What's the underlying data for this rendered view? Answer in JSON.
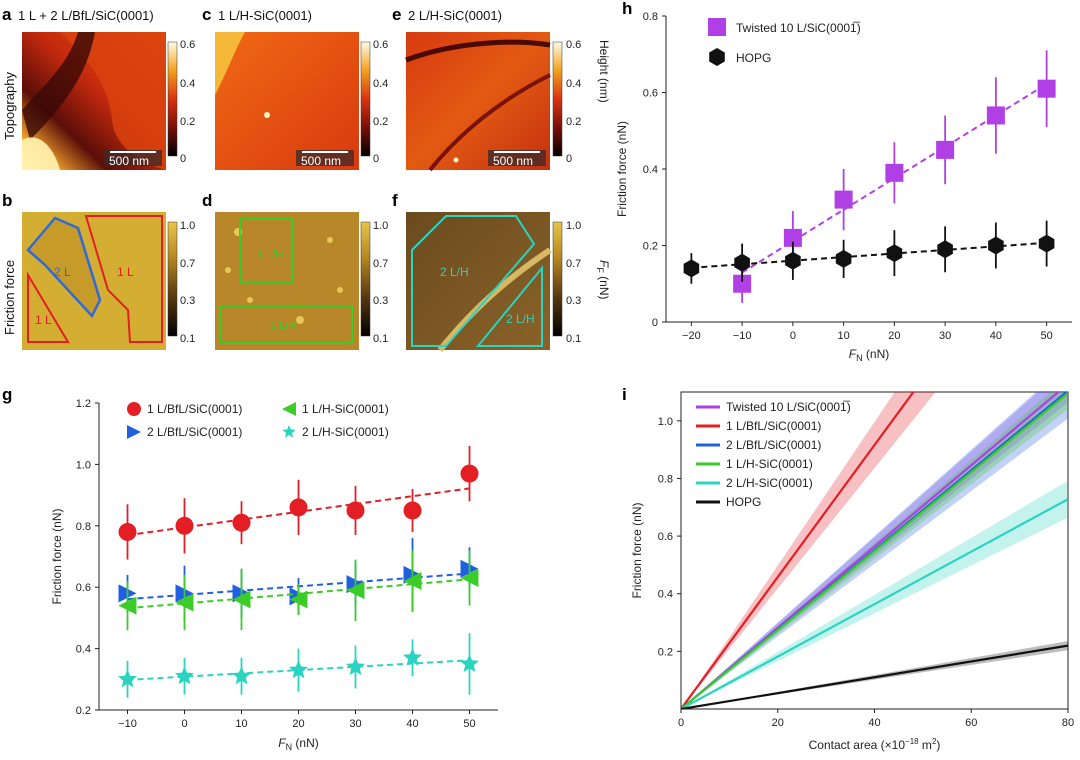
{
  "colors": {
    "red": "#e31e24",
    "blue": "#1f5fe0",
    "green": "#3ccc2a",
    "cyan": "#2bd3c1",
    "purple": "#b13fe6",
    "black": "#111111"
  },
  "panels": {
    "a": {
      "letter": "a",
      "title": "1 L + 2 L/BfL/SiC(0001)",
      "row_label": "Topography",
      "scale": "500 nm"
    },
    "c": {
      "letter": "c",
      "title": "1 L/H-SiC(0001)",
      "scale": "500 nm"
    },
    "e": {
      "letter": "e",
      "title": "2 L/H-SiC(0001)",
      "scale": "500 nm"
    },
    "b": {
      "letter": "b",
      "row_label": "Friction force",
      "region1": "2 L",
      "region2": "1 L",
      "region3": "1 L"
    },
    "d": {
      "letter": "d",
      "region1": "1 L/H",
      "region2": "1 L/H"
    },
    "f": {
      "letter": "f",
      "region1": "2 L/H",
      "region2": "2 L/H"
    },
    "colorbar_height": {
      "ticks": [
        "0.6",
        "0.4",
        "0.2",
        "0"
      ],
      "label": "Height (nm)"
    },
    "colorbar_friction": {
      "ticks": [
        "1.0",
        "0.7",
        "0.3",
        "0.1"
      ],
      "label": "F",
      "label_sub": "F",
      "label_unit": " (nN)"
    }
  },
  "chart_data": [
    {
      "id": "h",
      "letter": "h",
      "type": "scatter",
      "xlabel": "F",
      "xlabel_sub": "N",
      "xlabel_unit": " (nN)",
      "ylabel": "Friction force (nN)",
      "xlim": [
        -25,
        55
      ],
      "ylim": [
        0,
        0.8
      ],
      "xticks": [
        "-20",
        "-10",
        "0",
        "10",
        "20",
        "30",
        "40",
        "50"
      ],
      "yticks": [
        "0",
        "0.2",
        "0.4",
        "0.6",
        "0.8"
      ],
      "series": [
        {
          "name": "Twisted 10 L/SiC(0001̅)",
          "marker": "square",
          "color": "#b13fe6",
          "x": [
            -10,
            0,
            10,
            20,
            30,
            40,
            50
          ],
          "y": [
            0.1,
            0.22,
            0.32,
            0.39,
            0.45,
            0.54,
            0.61
          ],
          "err": [
            0.05,
            0.07,
            0.08,
            0.08,
            0.09,
            0.1,
            0.1
          ]
        },
        {
          "name": "HOPG",
          "marker": "hexagon",
          "color": "#111111",
          "x": [
            -20,
            -10,
            0,
            10,
            20,
            30,
            40,
            50
          ],
          "y": [
            0.14,
            0.155,
            0.16,
            0.165,
            0.18,
            0.19,
            0.2,
            0.205
          ],
          "err": [
            0.04,
            0.05,
            0.05,
            0.05,
            0.06,
            0.06,
            0.06,
            0.06
          ]
        }
      ]
    },
    {
      "id": "g",
      "letter": "g",
      "type": "scatter",
      "xlabel": "F",
      "xlabel_sub": "N",
      "xlabel_unit": " (nN)",
      "ylabel": "Friction force (nN)",
      "xlim": [
        -15,
        55
      ],
      "ylim": [
        0.2,
        1.2
      ],
      "xticks": [
        "-10",
        "0",
        "10",
        "20",
        "30",
        "40",
        "50"
      ],
      "yticks": [
        "0.2",
        "0.4",
        "0.6",
        "0.8",
        "1.0",
        "1.2"
      ],
      "series": [
        {
          "name": "1 L/BfL/SiC(0001)",
          "marker": "circle",
          "color": "#e31e24",
          "x": [
            -10,
            0,
            10,
            20,
            30,
            40,
            50
          ],
          "y": [
            0.78,
            0.8,
            0.81,
            0.86,
            0.85,
            0.85,
            0.97
          ],
          "err": [
            0.09,
            0.09,
            0.07,
            0.09,
            0.08,
            0.07,
            0.09
          ]
        },
        {
          "name": "2 L/BfL/SiC(0001)",
          "marker": "tri-right",
          "color": "#1f5fe0",
          "x": [
            -10,
            0,
            10,
            20,
            30,
            40,
            50
          ],
          "y": [
            0.58,
            0.58,
            0.58,
            0.57,
            0.61,
            0.64,
            0.66
          ],
          "err": [
            0.06,
            0.09,
            0.08,
            0.06,
            0.07,
            0.12,
            0.07
          ]
        },
        {
          "name": "1 L/H-SiC(0001)",
          "marker": "tri-left",
          "color": "#3ccc2a",
          "x": [
            -10,
            0,
            10,
            20,
            30,
            40,
            50
          ],
          "y": [
            0.54,
            0.55,
            0.56,
            0.56,
            0.59,
            0.62,
            0.63
          ],
          "err": [
            0.08,
            0.09,
            0.1,
            0.05,
            0.1,
            0.1,
            0.09
          ]
        },
        {
          "name": "2 L/H-SiC(0001)",
          "marker": "star",
          "color": "#2bd3c1",
          "x": [
            -10,
            0,
            10,
            20,
            30,
            40,
            50
          ],
          "y": [
            0.3,
            0.31,
            0.31,
            0.33,
            0.34,
            0.37,
            0.35
          ],
          "err": [
            0.06,
            0.06,
            0.06,
            0.07,
            0.07,
            0.06,
            0.1
          ]
        }
      ]
    },
    {
      "id": "i",
      "letter": "i",
      "type": "line",
      "xlabel": "Contact area (×10",
      "xlabel_sup": "−18",
      "xlabel_unit": " m",
      "xlabel_sup2": "2",
      "xlabel_close": ")",
      "ylabel": "Friction force (nN)",
      "xlim": [
        0,
        80
      ],
      "ylim": [
        0,
        1.1
      ],
      "xticks": [
        "0",
        "20",
        "40",
        "60",
        "80"
      ],
      "yticks": [
        "0.2",
        "0.4",
        "0.6",
        "0.8",
        "1.0"
      ],
      "series": [
        {
          "name": "Twisted 10 L/SiC(0001̅)",
          "color": "#b13fe6",
          "slope": 0.0141,
          "band": 0.0008
        },
        {
          "name": "1 L/BfL/SiC(0001)",
          "color": "#e31e24",
          "slope": 0.0229,
          "band": 0.002
        },
        {
          "name": "2 L/BfL/SiC(0001)",
          "color": "#1f5fe0",
          "slope": 0.0138,
          "band": 0.0012
        },
        {
          "name": "1 L/H-SiC(0001)",
          "color": "#3ccc2a",
          "slope": 0.0137,
          "band": 0.0007
        },
        {
          "name": "2 L/H-SiC(0001)",
          "color": "#2bd3c1",
          "slope": 0.0091,
          "band": 0.0008
        },
        {
          "name": "HOPG",
          "color": "#111111",
          "slope": 0.00275,
          "band": 0.0002
        }
      ]
    }
  ]
}
